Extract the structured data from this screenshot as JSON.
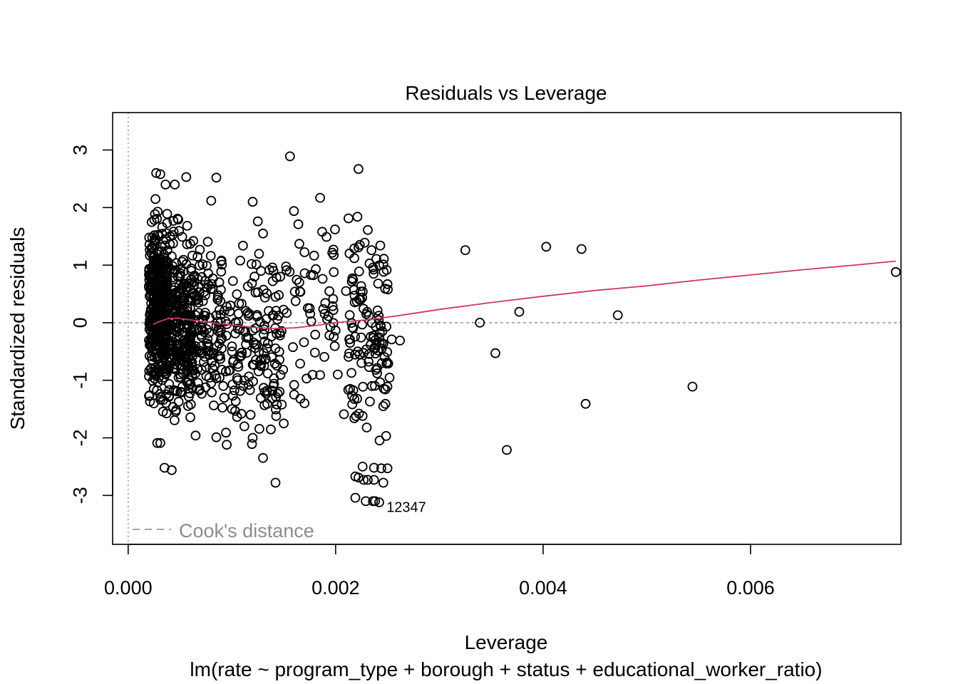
{
  "chart_data": {
    "type": "scatter",
    "title": "Residuals vs Leverage",
    "xlabel": "Leverage",
    "ylabel": "Standardized residuals",
    "subtitle": "lm(rate ~ program_type + borough + status + educational_worker_ratio)",
    "xlim": [
      -0.00015,
      0.00745
    ],
    "ylim": [
      -3.85,
      3.65
    ],
    "x_ticks": [
      0.0,
      0.002,
      0.004,
      0.006
    ],
    "x_tick_labels": [
      "0.000",
      "0.002",
      "0.004",
      "0.006"
    ],
    "y_ticks": [
      -3,
      -2,
      -1,
      0,
      1,
      2,
      3
    ],
    "y_tick_labels": [
      "-3",
      "-2",
      "-1",
      "0",
      "1",
      "2",
      "3"
    ],
    "legend": {
      "label": "Cook's distance",
      "placement": "bottom-left"
    },
    "point_label": {
      "text": "12347",
      "x": 0.00249,
      "y": -3.2
    },
    "colors": {
      "points": "#000000",
      "smooth": "#d03a5b",
      "reference": "#9a9a9a",
      "legend_text": "#8c8c8c"
    },
    "clusters": [
      {
        "x_min": 0.0002,
        "x_max": 0.00038,
        "y_min": -2.1,
        "y_max": 2.6,
        "count": 420
      },
      {
        "x_min": 0.00038,
        "x_max": 0.00062,
        "y_min": -2.6,
        "y_max": 2.4,
        "count": 260
      },
      {
        "x_min": 0.00062,
        "x_max": 0.0009,
        "y_min": -2.0,
        "y_max": 1.9,
        "count": 120
      },
      {
        "x_min": 0.0009,
        "x_max": 0.0015,
        "y_min": -2.8,
        "y_max": 2.1,
        "count": 150
      },
      {
        "x_min": 0.0015,
        "x_max": 0.002,
        "y_min": -1.8,
        "y_max": 2.9,
        "count": 45
      },
      {
        "x_min": 0.00212,
        "x_max": 0.00252,
        "y_min": -3.1,
        "y_max": 2.7,
        "count": 100
      }
    ],
    "points": [
      [
        0.00027,
        2.6
      ],
      [
        0.00031,
        2.58
      ],
      [
        0.00036,
        2.4
      ],
      [
        0.00045,
        2.4
      ],
      [
        0.00056,
        2.53
      ],
      [
        0.00085,
        2.52
      ],
      [
        0.0008,
        2.12
      ],
      [
        0.0012,
        2.1
      ],
      [
        0.00156,
        2.89
      ],
      [
        0.00185,
        2.17
      ],
      [
        0.00187,
        1.58
      ],
      [
        0.00164,
        1.71
      ],
      [
        0.00165,
        1.37
      ],
      [
        0.00222,
        2.67
      ],
      [
        0.00221,
        1.84
      ],
      [
        0.00125,
        1.76
      ],
      [
        0.0013,
        1.55
      ],
      [
        0.00165,
        0.7
      ],
      [
        0.00175,
        0.25
      ],
      [
        0.0018,
        -0.52
      ],
      [
        0.00202,
        -0.9
      ],
      [
        0.00208,
        -1.59
      ],
      [
        0.00195,
        -0.07
      ],
      [
        0.00194,
        -0.22
      ],
      [
        0.0015,
        -1.75
      ],
      [
        0.0013,
        -2.35
      ],
      [
        0.00142,
        -2.78
      ],
      [
        0.0012,
        -2.0
      ],
      [
        0.00095,
        -2.12
      ],
      [
        0.00085,
        -1.99
      ],
      [
        0.00035,
        -2.52
      ],
      [
        0.00042,
        -2.56
      ],
      [
        0.00028,
        -2.09
      ],
      [
        0.00031,
        -2.09
      ],
      [
        0.00065,
        -1.96
      ],
      [
        0.0017,
        -1.4
      ],
      [
        0.0016,
        -1.25
      ],
      [
        0.0023,
        -1.82
      ],
      [
        0.00238,
        -0.45
      ],
      [
        0.00245,
        -0.15
      ],
      [
        0.00249,
        -0.71
      ],
      [
        0.0025,
        0.67
      ],
      [
        0.00246,
        1.01
      ],
      [
        0.00243,
        1.34
      ],
      [
        0.00231,
        1.61
      ],
      [
        0.00236,
        0.96
      ],
      [
        0.00241,
        0.68
      ],
      [
        0.00232,
        0.12
      ],
      [
        0.00248,
        -1.16
      ],
      [
        0.00235,
        -1.1
      ],
      [
        0.00233,
        -1.37
      ],
      [
        0.00218,
        -1.66
      ],
      [
        0.00226,
        -1.62
      ],
      [
        0.00248,
        -1.41
      ],
      [
        0.0024,
        -0.88
      ],
      [
        0.00254,
        -0.29
      ],
      [
        0.00262,
        -0.31
      ],
      [
        0.00226,
        -2.5
      ],
      [
        0.00219,
        -2.67
      ],
      [
        0.00222,
        -2.69
      ],
      [
        0.00227,
        -2.73
      ],
      [
        0.00231,
        -2.73
      ],
      [
        0.00237,
        -2.73
      ],
      [
        0.00246,
        -2.78
      ],
      [
        0.00237,
        -2.52
      ],
      [
        0.00244,
        -2.53
      ],
      [
        0.0025,
        -2.53
      ],
      [
        0.00219,
        -3.04
      ],
      [
        0.00229,
        -3.1
      ],
      [
        0.00236,
        -3.1
      ],
      [
        0.00238,
        -3.1
      ],
      [
        0.00242,
        -3.12
      ],
      [
        0.00325,
        1.26
      ],
      [
        0.00403,
        1.32
      ],
      [
        0.00437,
        1.28
      ],
      [
        0.0074,
        0.88
      ],
      [
        0.00339,
        0.0
      ],
      [
        0.00377,
        0.19
      ],
      [
        0.00472,
        0.13
      ],
      [
        0.00354,
        -0.53
      ],
      [
        0.00441,
        -1.41
      ],
      [
        0.00544,
        -1.11
      ],
      [
        0.00365,
        -2.21
      ],
      [
        0.00118,
        -1.6
      ],
      [
        0.00112,
        -1.8
      ],
      [
        0.001,
        -1.5
      ],
      [
        0.00139,
        -1.18
      ],
      [
        0.00134,
        -1.18
      ],
      [
        0.00146,
        -1.2
      ],
      [
        0.0014,
        -1.1
      ],
      [
        0.0016,
        -1.08
      ],
      [
        0.00166,
        -1.32
      ],
      [
        0.00172,
        -0.97
      ],
      [
        0.00185,
        -0.91
      ],
      [
        0.0021,
        0.55
      ],
      [
        0.00216,
        0.77
      ],
      [
        0.00218,
        1.12
      ],
      [
        0.00222,
        1.31
      ],
      [
        0.00228,
        1.39
      ],
      [
        0.00224,
        0.4
      ],
      [
        0.0014,
        0.9
      ],
      [
        0.00142,
        0.45
      ],
      [
        0.00145,
        0.12
      ],
      [
        0.00128,
        0.9
      ],
      [
        0.00119,
        1.02
      ],
      [
        0.00125,
        0.53
      ],
      [
        0.00108,
        1.08
      ],
      [
        0.0009,
        1.08
      ],
      [
        0.00095,
        0.28
      ],
      [
        0.001,
        -0.5
      ]
    ],
    "lowess": [
      [
        0.00024,
        -0.03
      ],
      [
        0.0003,
        0.02
      ],
      [
        0.00038,
        0.07
      ],
      [
        0.00046,
        0.08
      ],
      [
        0.0006,
        0.05
      ],
      [
        0.0008,
        0.0
      ],
      [
        0.001,
        -0.04
      ],
      [
        0.0012,
        -0.08
      ],
      [
        0.0014,
        -0.1
      ],
      [
        0.0016,
        -0.09
      ],
      [
        0.0018,
        -0.05
      ],
      [
        0.002,
        0.0
      ],
      [
        0.0023,
        0.05
      ],
      [
        0.0026,
        0.12
      ],
      [
        0.003,
        0.23
      ],
      [
        0.0035,
        0.35
      ],
      [
        0.004,
        0.46
      ],
      [
        0.0045,
        0.56
      ],
      [
        0.005,
        0.64
      ],
      [
        0.0055,
        0.74
      ],
      [
        0.006,
        0.83
      ],
      [
        0.0065,
        0.92
      ],
      [
        0.007,
        1.0
      ],
      [
        0.0074,
        1.07
      ]
    ]
  }
}
